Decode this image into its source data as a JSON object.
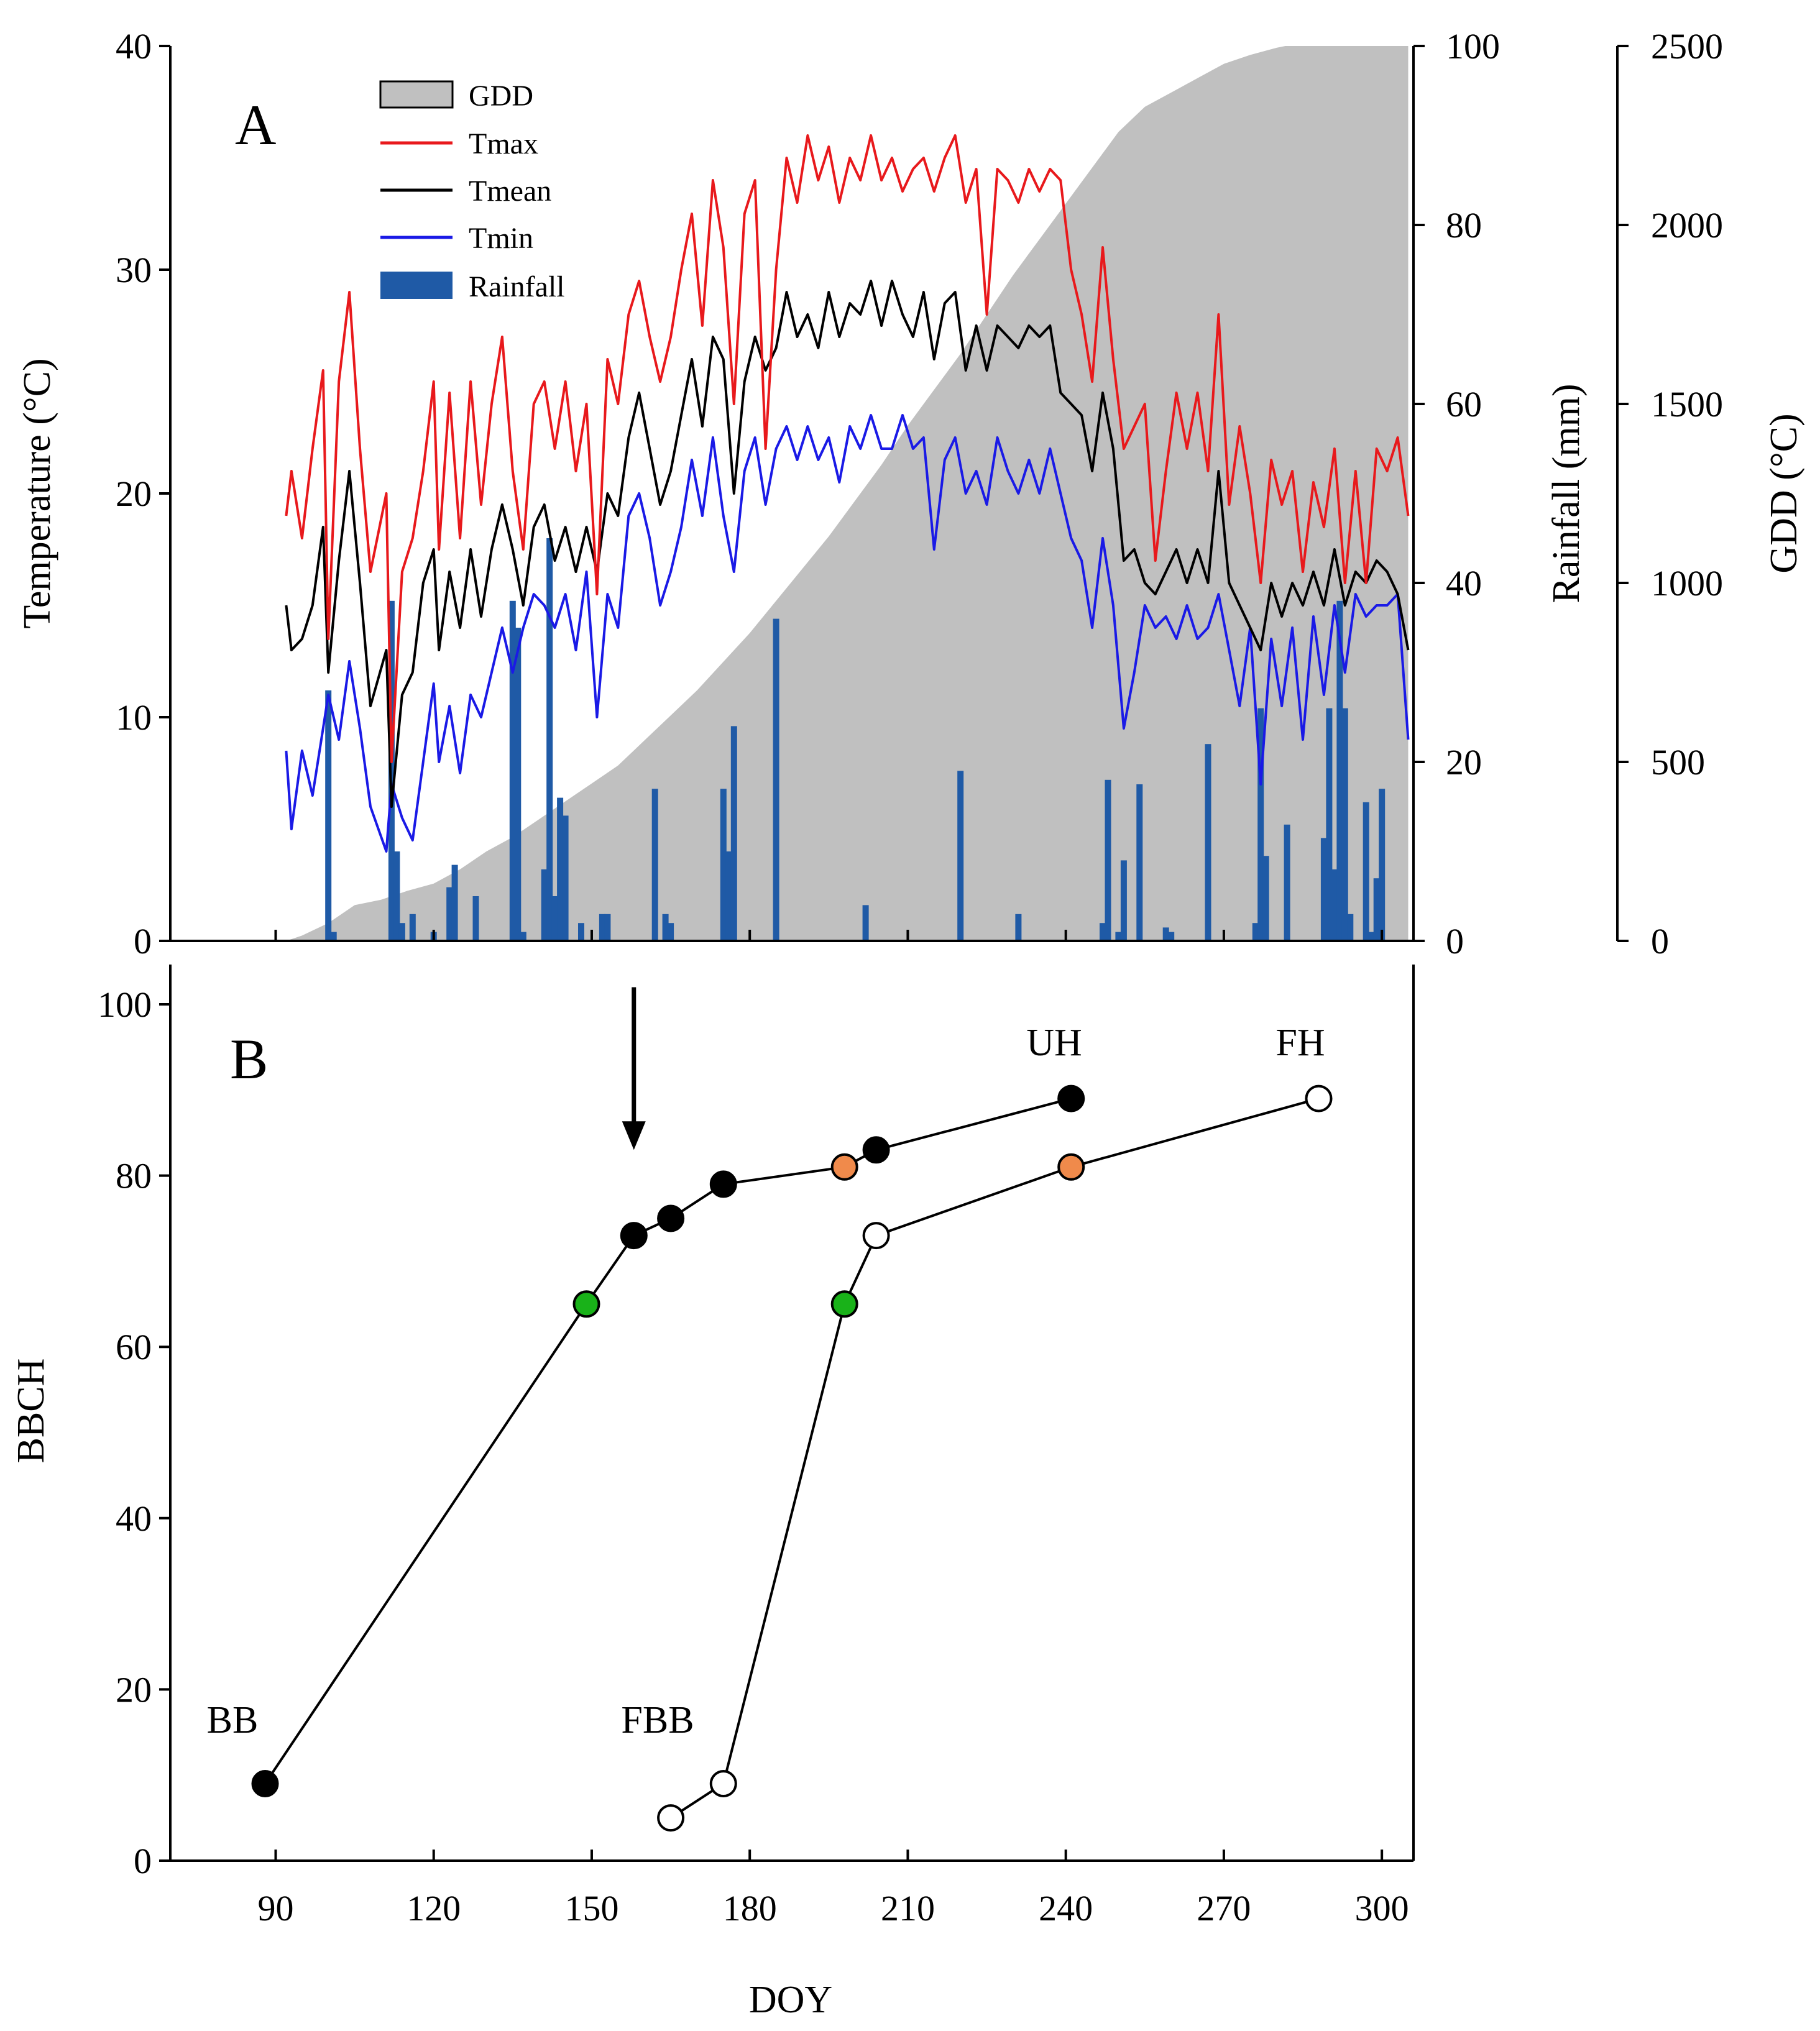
{
  "chart_data": [
    {
      "panel": "A",
      "type": "line",
      "panel_label": "A",
      "xlim": [
        70,
        306
      ],
      "ylabel": "Temperature (°C)",
      "ylim": [
        0,
        40
      ],
      "yticks": [
        0,
        10,
        20,
        30,
        40
      ],
      "y2label": "Rainfall (mm)",
      "y2lim": [
        0,
        100
      ],
      "y2ticks": [
        0,
        20,
        40,
        60,
        80,
        100
      ],
      "y3label": "GDD (°C)",
      "y3lim": [
        0,
        2500
      ],
      "y3ticks": [
        0,
        500,
        1000,
        1500,
        2000,
        2500
      ],
      "legend": [
        {
          "name": "GDD",
          "kind": "area",
          "color": "#c0c0c0"
        },
        {
          "name": "Tmax",
          "kind": "line",
          "color": "#e8191c"
        },
        {
          "name": "Tmean",
          "kind": "line",
          "color": "#000000"
        },
        {
          "name": "Tmin",
          "kind": "line",
          "color": "#1a1ae6"
        },
        {
          "name": "Rainfall",
          "kind": "bar",
          "color": "#1f5aa6"
        }
      ],
      "series": {
        "Tmax": {
          "x": [
            92,
            93,
            95,
            97,
            99,
            100,
            102,
            104,
            106,
            108,
            111,
            112,
            114,
            116,
            118,
            120,
            121,
            123,
            125,
            127,
            129,
            131,
            133,
            135,
            137,
            139,
            141,
            143,
            145,
            147,
            149,
            151,
            153,
            155,
            157,
            159,
            161,
            163,
            165,
            167,
            169,
            171,
            173,
            175,
            177,
            179,
            181,
            183,
            185,
            187,
            189,
            191,
            193,
            195,
            197,
            199,
            201,
            203,
            205,
            207,
            209,
            211,
            213,
            215,
            217,
            219,
            221,
            223,
            225,
            227,
            229,
            231,
            233,
            235,
            237,
            239,
            241,
            243,
            245,
            247,
            249,
            251,
            253,
            255,
            257,
            259,
            261,
            263,
            265,
            267,
            269,
            271,
            273,
            275,
            277,
            279,
            281,
            283,
            285,
            287,
            289,
            291,
            293,
            295,
            297,
            299,
            301,
            303,
            305
          ],
          "values": [
            19,
            21,
            18,
            22,
            25.5,
            13.5,
            25,
            29,
            22,
            16.5,
            20,
            8,
            16.5,
            18,
            21,
            25,
            17.5,
            24.5,
            18,
            25,
            19.5,
            24,
            27,
            21,
            17.5,
            24,
            25,
            22,
            25,
            21,
            24,
            15.5,
            26,
            24,
            28,
            29.5,
            27,
            25,
            27,
            30,
            32.5,
            27.5,
            34,
            31,
            24,
            32.5,
            34,
            22,
            30,
            35,
            33,
            36,
            34,
            35.5,
            33,
            35,
            34,
            36,
            34,
            35,
            33.5,
            34.5,
            35,
            33.5,
            35,
            36,
            33,
            34.5,
            28,
            34.5,
            34,
            33,
            34.5,
            33.5,
            34.5,
            34,
            30,
            28,
            25,
            31,
            26,
            22,
            23,
            24,
            17,
            21,
            24.5,
            22,
            24.5,
            21,
            28,
            19.5,
            23,
            20,
            16,
            21.5,
            19.5,
            21,
            16.5,
            20.5,
            18.5,
            22,
            16,
            21,
            16,
            22,
            21,
            22.5,
            19
          ]
        },
        "Tmean": {
          "x": [
            92,
            93,
            95,
            97,
            99,
            100,
            102,
            104,
            106,
            108,
            111,
            112,
            114,
            116,
            118,
            120,
            121,
            123,
            125,
            127,
            129,
            131,
            133,
            135,
            137,
            139,
            141,
            143,
            145,
            147,
            149,
            151,
            153,
            155,
            157,
            159,
            161,
            163,
            165,
            167,
            169,
            171,
            173,
            175,
            177,
            179,
            181,
            183,
            185,
            187,
            189,
            191,
            193,
            195,
            197,
            199,
            201,
            203,
            205,
            207,
            209,
            211,
            213,
            215,
            217,
            219,
            221,
            223,
            225,
            227,
            229,
            231,
            233,
            235,
            237,
            239,
            241,
            243,
            245,
            247,
            249,
            251,
            253,
            255,
            257,
            259,
            261,
            263,
            265,
            267,
            269,
            271,
            273,
            275,
            277,
            279,
            281,
            283,
            285,
            287,
            289,
            291,
            293,
            295,
            297,
            299,
            301,
            303,
            305
          ],
          "values": [
            15,
            13,
            13.5,
            15,
            18.5,
            12,
            17,
            21,
            16,
            10.5,
            13,
            6,
            11,
            12,
            16,
            17.5,
            13,
            16.5,
            14,
            17.5,
            14.5,
            17.5,
            19.5,
            17.5,
            15,
            18.5,
            19.5,
            17,
            18.5,
            16.5,
            18.5,
            16.5,
            20,
            19,
            22.5,
            24.5,
            22,
            19.5,
            21,
            23.5,
            26,
            23,
            27,
            26,
            20,
            25,
            27,
            25.5,
            26.5,
            29,
            27,
            28,
            26.5,
            29,
            27,
            28.5,
            28,
            29.5,
            27.5,
            29.5,
            28,
            27,
            29,
            26,
            28.5,
            29,
            25.5,
            27.5,
            25.5,
            27.5,
            27,
            26.5,
            27.5,
            27,
            27.5,
            24.5,
            24,
            23.5,
            21,
            24.5,
            22,
            17,
            17.5,
            16,
            15.5,
            16.5,
            17.5,
            16,
            17.5,
            16,
            21,
            16,
            15,
            14,
            13,
            16,
            14.5,
            16,
            15,
            16.5,
            15,
            17.5,
            15,
            16.5,
            16,
            17,
            16.5,
            15.5,
            13
          ]
        },
        "Tmin": {
          "x": [
            92,
            93,
            95,
            97,
            99,
            100,
            102,
            104,
            106,
            108,
            111,
            112,
            114,
            116,
            118,
            120,
            121,
            123,
            125,
            127,
            129,
            131,
            133,
            135,
            137,
            139,
            141,
            143,
            145,
            147,
            149,
            151,
            153,
            155,
            157,
            159,
            161,
            163,
            165,
            167,
            169,
            171,
            173,
            175,
            177,
            179,
            181,
            183,
            185,
            187,
            189,
            191,
            193,
            195,
            197,
            199,
            201,
            203,
            205,
            207,
            209,
            211,
            213,
            215,
            217,
            219,
            221,
            223,
            225,
            227,
            229,
            231,
            233,
            235,
            237,
            239,
            241,
            243,
            245,
            247,
            249,
            251,
            253,
            255,
            257,
            259,
            261,
            263,
            265,
            267,
            269,
            271,
            273,
            275,
            277,
            279,
            281,
            283,
            285,
            287,
            289,
            291,
            293,
            295,
            297,
            299,
            301,
            303,
            305
          ],
          "values": [
            8.5,
            5,
            8.5,
            6.5,
            9.5,
            11,
            9,
            12.5,
            9.5,
            6,
            4,
            7,
            5.5,
            4.5,
            8,
            11.5,
            8,
            10.5,
            7.5,
            11,
            10,
            12,
            14,
            12,
            14,
            15.5,
            15,
            14,
            15.5,
            13,
            16.5,
            10,
            15.5,
            14,
            19,
            20,
            18,
            15,
            16.5,
            18.5,
            21.5,
            19,
            22.5,
            19,
            16.5,
            21,
            22.5,
            19.5,
            22,
            23,
            21.5,
            23,
            21.5,
            22.5,
            20.5,
            23,
            22,
            23.5,
            22,
            22,
            23.5,
            22,
            22.5,
            17.5,
            21.5,
            22.5,
            20,
            21,
            19.5,
            22.5,
            21,
            20,
            21.5,
            20,
            22,
            20,
            18,
            17,
            14,
            18,
            15,
            9.5,
            12,
            15,
            14,
            14.5,
            13.5,
            15,
            13.5,
            14,
            15.5,
            13,
            10.5,
            14,
            7,
            13.5,
            10.5,
            14,
            9,
            14.5,
            11,
            15,
            12,
            15.5,
            14.5,
            15,
            15,
            15.5,
            9
          ]
        },
        "GDD": {
          "x": [
            92,
            95,
            100,
            105,
            110,
            115,
            120,
            125,
            130,
            135,
            140,
            145,
            150,
            155,
            160,
            165,
            170,
            175,
            180,
            185,
            190,
            195,
            200,
            205,
            210,
            215,
            220,
            225,
            230,
            235,
            240,
            245,
            250,
            255,
            260,
            265,
            270,
            275,
            280,
            285,
            290,
            295,
            300,
            305
          ],
          "values": [
            0,
            15,
            50,
            100,
            115,
            140,
            160,
            200,
            250,
            290,
            340,
            390,
            440,
            490,
            560,
            630,
            700,
            780,
            860,
            950,
            1040,
            1130,
            1230,
            1330,
            1440,
            1540,
            1640,
            1750,
            1860,
            1960,
            2060,
            2160,
            2260,
            2330,
            2370,
            2410,
            2450,
            2475,
            2495,
            2510,
            2530,
            2550,
            2570,
            2590
          ]
        },
        "Rainfall": {
          "x": [
            100,
            101,
            112,
            113,
            114,
            116,
            120,
            123,
            124,
            128,
            135,
            136,
            137,
            141,
            142,
            143,
            144,
            145,
            148,
            152,
            153,
            162,
            164,
            165,
            175,
            176,
            177,
            185,
            202,
            220,
            231,
            247,
            248,
            250,
            251,
            254,
            259,
            260,
            267,
            276,
            277,
            278,
            282,
            289,
            290,
            291,
            292,
            293,
            294,
            297,
            298,
            299,
            300
          ],
          "values": [
            28,
            1,
            38,
            10,
            2,
            3,
            1,
            6,
            8.5,
            5,
            38,
            35,
            1,
            8,
            45,
            5,
            16,
            14,
            2,
            3,
            3,
            17,
            3,
            2,
            17,
            10,
            24,
            36,
            4,
            19,
            3,
            2,
            18,
            1,
            9,
            17.5,
            1.5,
            1,
            22,
            2,
            26,
            9.5,
            13,
            11.5,
            26,
            8,
            38,
            26,
            3,
            15.5,
            1,
            7,
            17
          ]
        }
      }
    },
    {
      "panel": "B",
      "type": "scatter",
      "panel_label": "B",
      "xlabel": "DOY",
      "ylabel": "BBCH",
      "xlim": [
        70,
        306
      ],
      "xticks": [
        90,
        120,
        150,
        180,
        210,
        240,
        270,
        300
      ],
      "ylim": [
        0,
        100
      ],
      "yticks": [
        0,
        20,
        40,
        60,
        80,
        100
      ],
      "series": [
        {
          "name": "UH",
          "label_start": "BB",
          "label_end": "UH",
          "x": [
            88,
            149,
            158,
            165,
            175,
            198,
            204,
            241
          ],
          "y": [
            9,
            65,
            73,
            75,
            79,
            81,
            83,
            89
          ],
          "fills": [
            "#000000",
            "#19b219",
            "#000000",
            "#000000",
            "#000000",
            "#f08a4b",
            "#000000",
            "#000000"
          ]
        },
        {
          "name": "FH",
          "label_start": "FBB",
          "label_end": "FH",
          "x": [
            165,
            175,
            198,
            204,
            241,
            288
          ],
          "y": [
            5,
            9,
            65,
            73,
            81,
            89
          ],
          "fills": [
            "#ffffff",
            "#ffffff",
            "#19b219",
            "#ffffff",
            "#f08a4b",
            "#ffffff"
          ]
        }
      ],
      "arrow": {
        "x": 158,
        "y_from": 102,
        "y_to": 83
      }
    }
  ]
}
